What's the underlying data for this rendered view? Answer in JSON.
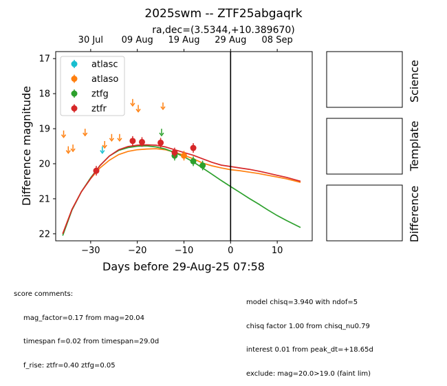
{
  "chart_data": {
    "type": "scatter",
    "title": "2025swm -- ZTF25abgaqrk",
    "subtitle": "ra,dec=(3.5344,+10.389670)",
    "xlabel": "Days before 29-Aug-25 07:58",
    "ylabel": "Difference magnitude",
    "xlim": [
      -37.5,
      17.5
    ],
    "ylim": [
      22.2,
      16.8
    ],
    "y_inverted": true,
    "grid": false,
    "legend_position": "upper-left",
    "x_ticks": [
      -30,
      -20,
      -10,
      0,
      10
    ],
    "x_tick_labels": [
      "−30",
      "−20",
      "−10",
      "0",
      "10"
    ],
    "y_ticks": [
      17,
      18,
      19,
      20,
      21,
      22
    ],
    "y_tick_labels": [
      "17",
      "18",
      "19",
      "20",
      "21",
      "22"
    ],
    "top_axis": {
      "ticks": [
        -30,
        -20,
        -10,
        0,
        10
      ],
      "labels": [
        "30 Jul",
        "09 Aug",
        "19 Aug",
        "29 Aug",
        "08 Sep"
      ]
    },
    "vline_x": 0,
    "series": [
      {
        "name": "atlasc",
        "color": "#17becf",
        "points": [],
        "upper_limits": [
          [
            -27.5,
            19.6
          ]
        ]
      },
      {
        "name": "atlaso",
        "color": "#ff7f0e",
        "points": [
          [
            -10,
            19.77
          ]
        ],
        "upper_limits": [
          [
            -35.8,
            19.15
          ],
          [
            -34.8,
            19.6
          ],
          [
            -33.8,
            19.55
          ],
          [
            -31.2,
            19.1
          ],
          [
            -27.0,
            19.45
          ],
          [
            -25.5,
            19.25
          ],
          [
            -23.8,
            19.25
          ],
          [
            -21.0,
            18.25
          ],
          [
            -19.8,
            18.42
          ],
          [
            -14.5,
            18.35
          ]
        ]
      },
      {
        "name": "ztfg",
        "color": "#2ca02c",
        "points": [
          [
            -12,
            19.77
          ],
          [
            -8,
            19.93
          ],
          [
            -6,
            20.05
          ]
        ],
        "upper_limits": [
          [
            -14.8,
            19.1
          ]
        ]
      },
      {
        "name": "ztfr",
        "color": "#d62728",
        "points": [
          [
            -28.8,
            20.2
          ],
          [
            -21,
            19.35
          ],
          [
            -19,
            19.38
          ],
          [
            -15,
            19.4
          ],
          [
            -12,
            19.68
          ],
          [
            -8,
            19.55
          ]
        ],
        "upper_limits": []
      }
    ],
    "models": [
      {
        "band": "atlaso",
        "color": "#ff7f0e",
        "x": [
          -36,
          -34,
          -32,
          -30,
          -28,
          -26,
          -24,
          -22,
          -20,
          -18,
          -16,
          -14,
          -12,
          -10,
          -8,
          -6,
          -4,
          -2,
          0,
          2,
          4,
          6,
          8,
          10,
          12,
          15
        ],
        "y": [
          22.0,
          21.3,
          20.8,
          20.42,
          20.12,
          19.9,
          19.74,
          19.65,
          19.6,
          19.58,
          19.57,
          19.6,
          19.67,
          19.76,
          19.86,
          19.98,
          20.06,
          20.12,
          20.17,
          20.2,
          20.24,
          20.28,
          20.33,
          20.38,
          20.43,
          20.53
        ]
      },
      {
        "band": "ztfg",
        "color": "#2ca02c",
        "x": [
          -36,
          -34,
          -32,
          -30,
          -28,
          -26,
          -24,
          -22,
          -20,
          -18,
          -16,
          -14,
          -12,
          -10,
          -8,
          -6,
          -4,
          -2,
          0,
          2,
          4,
          6,
          8,
          10,
          12,
          15
        ],
        "y": [
          22.05,
          21.32,
          20.8,
          20.4,
          20.05,
          19.78,
          19.62,
          19.54,
          19.5,
          19.49,
          19.52,
          19.58,
          19.68,
          19.8,
          19.95,
          20.12,
          20.3,
          20.48,
          20.65,
          20.82,
          20.99,
          21.15,
          21.32,
          21.48,
          21.62,
          21.82
        ]
      },
      {
        "band": "ztfr",
        "color": "#d62728",
        "x": [
          -36,
          -34,
          -32,
          -30,
          -28,
          -26,
          -24,
          -22,
          -20,
          -18,
          -16,
          -14,
          -12,
          -10,
          -8,
          -6,
          -4,
          -2,
          0,
          2,
          4,
          6,
          8,
          10,
          12,
          15
        ],
        "y": [
          22.0,
          21.3,
          20.8,
          20.42,
          20.05,
          19.78,
          19.6,
          19.51,
          19.47,
          19.46,
          19.47,
          19.52,
          19.6,
          19.68,
          19.76,
          19.86,
          19.96,
          20.04,
          20.08,
          20.12,
          20.16,
          20.21,
          20.27,
          20.33,
          20.39,
          20.5
        ]
      }
    ],
    "legend": [
      {
        "name": "atlasc",
        "color": "#17becf"
      },
      {
        "name": "atlaso",
        "color": "#ff7f0e"
      },
      {
        "name": "ztfg",
        "color": "#2ca02c"
      },
      {
        "name": "ztfr",
        "color": "#d62728"
      }
    ],
    "panels": [
      "Science",
      "Template",
      "Difference"
    ]
  },
  "comments": {
    "heading": "score comments:",
    "left": [
      "mag_factor=0.17 from mag=20.04",
      "timespan f=0.02 from timespan=29.0d",
      "f_rise: ztfr=0.40 ztfg=0.05"
    ],
    "right": [
      "model chisq=3.940 with ndof=5",
      "chisq factor 1.00 from chisq_nu0.79",
      "interest 0.01 from peak_dt=+18.65d",
      "exclude: mag=20.0>19.0 (faint lim)"
    ]
  }
}
